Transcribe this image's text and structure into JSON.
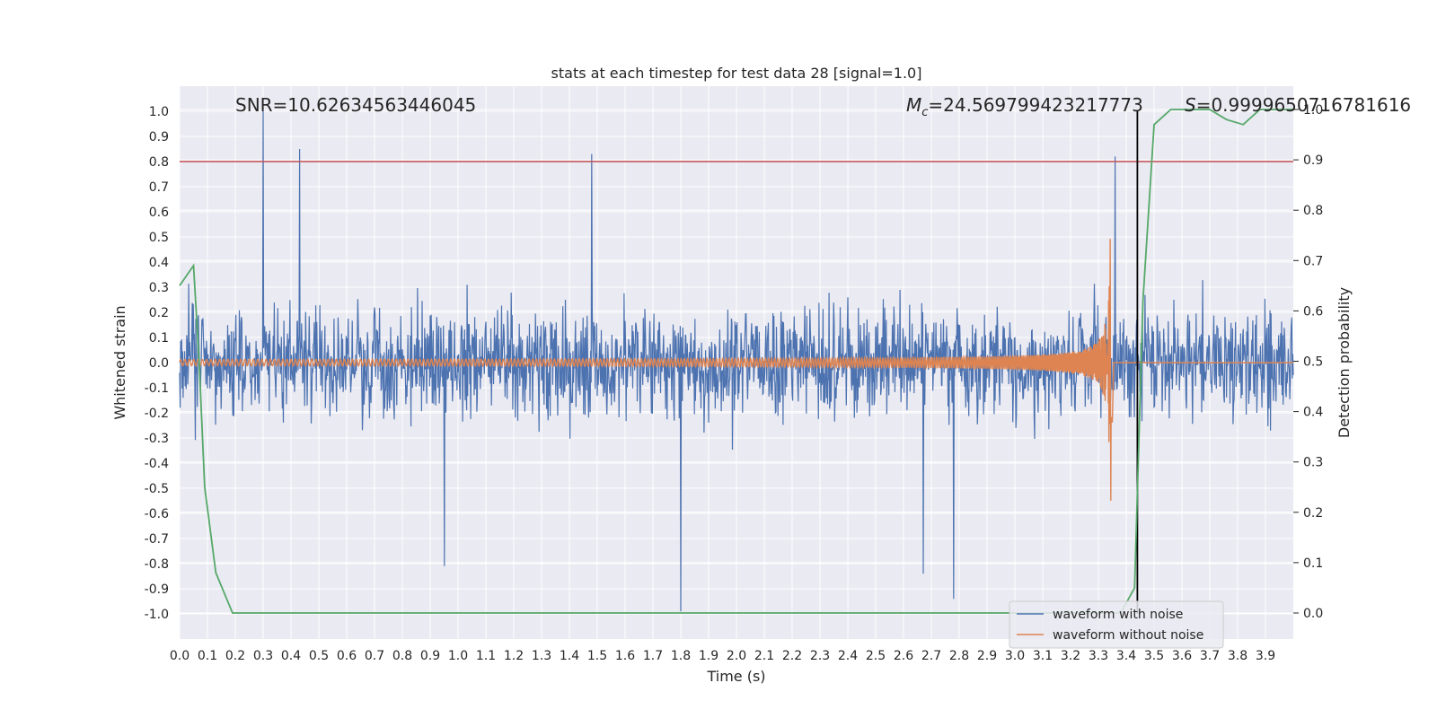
{
  "chart_data": {
    "type": "line",
    "title": "stats at each timestep for test data 28 [signal=1.0]",
    "xlabel": "Time (s)",
    "ylabel": "Whitened strain",
    "ylabel_right": "Detection probability",
    "xlim": [
      0.0,
      4.0
    ],
    "ylim": [
      -1.1,
      1.1
    ],
    "ylim_right": [
      -0.05,
      1.05
    ],
    "x_ticks": [
      "0.0",
      "0.1",
      "0.2",
      "0.3",
      "0.4",
      "0.5",
      "0.6",
      "0.7",
      "0.8",
      "0.9",
      "1.0",
      "1.1",
      "1.2",
      "1.3",
      "1.4",
      "1.5",
      "1.6",
      "1.7",
      "1.8",
      "1.9",
      "2.0",
      "2.1",
      "2.2",
      "2.3",
      "2.4",
      "2.5",
      "2.6",
      "2.7",
      "2.8",
      "2.9",
      "3.0",
      "3.1",
      "3.2",
      "3.3",
      "3.4",
      "3.5",
      "3.6",
      "3.7",
      "3.8",
      "3.9"
    ],
    "y_ticks": [
      "1.0",
      "0.9",
      "0.8",
      "0.7",
      "0.6",
      "0.5",
      "0.4",
      "0.3",
      "0.2",
      "0.1",
      "0.0",
      "-0.1",
      "-0.2",
      "-0.3",
      "-0.4",
      "-0.5",
      "-0.6",
      "-0.7",
      "-0.8",
      "-0.9",
      "-1.0"
    ],
    "y_right_ticks": [
      "1.0",
      "0.9",
      "0.8",
      "0.7",
      "0.6",
      "0.5",
      "0.4",
      "0.3",
      "0.2",
      "0.1",
      "0.0"
    ],
    "grid": true,
    "legend_placement": "lower-right",
    "annotations": {
      "snr": "SNR=10.62634563446045",
      "mc_symbol": "M",
      "mc_sub": "c",
      "mc_value": "=24.569799423217773",
      "s_symbol": "S",
      "s_value": "=0.9999650716781616"
    },
    "threshold": {
      "y": 0.8,
      "axis": "left"
    },
    "merger_line": {
      "x": 3.44,
      "y_range": [
        -1.0,
        1.0
      ]
    },
    "series": [
      {
        "name": "waveform with noise",
        "color": "#4c72b0",
        "kind": "noise",
        "amplitude_range": [
          -0.99,
          1.0
        ],
        "notable_peaks": [
          [
            0.3,
            1.0
          ],
          [
            0.43,
            0.85
          ],
          [
            1.48,
            0.83
          ],
          [
            3.36,
            0.82
          ],
          [
            1.8,
            -0.99
          ],
          [
            2.78,
            -0.94
          ],
          [
            2.67,
            -0.84
          ],
          [
            0.95,
            -0.81
          ]
        ]
      },
      {
        "name": "waveform without noise",
        "color": "#dd8452",
        "kind": "chirp",
        "merger_time": 3.35,
        "peak_amplitude": 0.55
      },
      {
        "name": "",
        "axis": "right",
        "color": "#55a868",
        "kind": "probability",
        "x": [
          0.0,
          0.05,
          0.07,
          0.09,
          0.13,
          0.19,
          0.5,
          1.0,
          1.5,
          2.0,
          2.5,
          3.0,
          3.3,
          3.38,
          3.43,
          3.46,
          3.5,
          3.56,
          3.62,
          3.7,
          3.76,
          3.82,
          3.88,
          3.93,
          4.0
        ],
        "y": [
          0.65,
          0.69,
          0.5,
          0.25,
          0.08,
          0.0,
          0.0,
          0.0,
          0.0,
          0.0,
          0.0,
          0.0,
          0.0,
          0.0,
          0.05,
          0.62,
          0.97,
          1.0,
          1.0,
          1.0,
          0.98,
          0.97,
          1.0,
          1.0,
          1.0
        ]
      }
    ]
  }
}
